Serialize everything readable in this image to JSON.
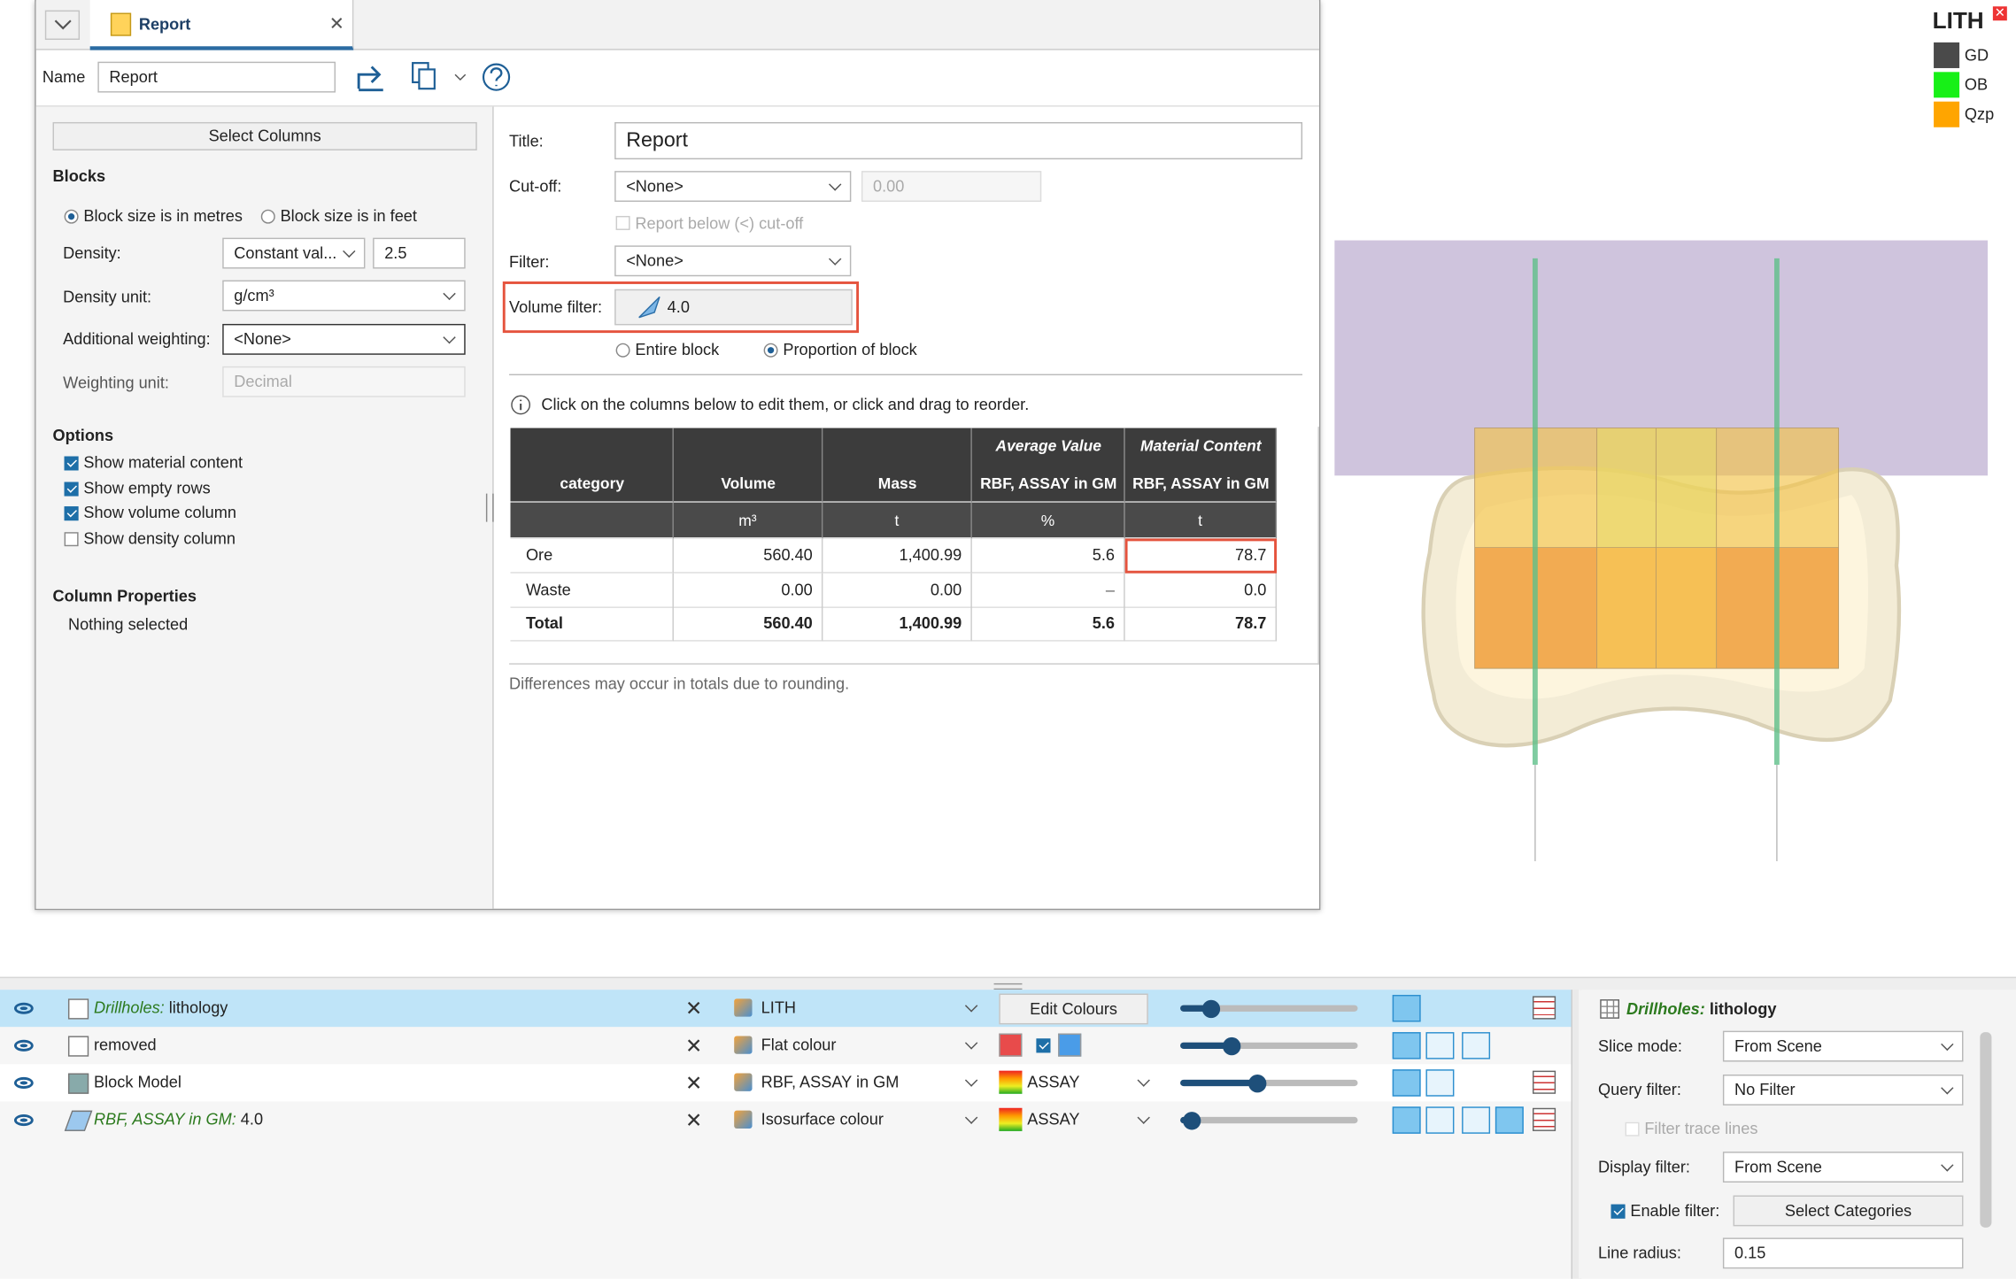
{
  "tab": {
    "title": "Report"
  },
  "toolbar": {
    "name_label": "Name",
    "name_value": "Report"
  },
  "left_panel": {
    "select_columns": "Select Columns",
    "blocks": {
      "heading": "Blocks",
      "size_options": [
        {
          "label": "Block size is in metres",
          "selected": true
        },
        {
          "label": "Block size is in feet",
          "selected": false
        }
      ],
      "density_label": "Density:",
      "density_mode": "Constant val...",
      "density_value": "2.5",
      "density_unit_label": "Density unit:",
      "density_unit": "g/cm³",
      "weighting_label": "Additional weighting:",
      "weighting": "<None>",
      "weighting_unit_label": "Weighting unit:",
      "weighting_unit": "Decimal"
    },
    "options": {
      "heading": "Options",
      "items": [
        {
          "label": "Show material content",
          "checked": true
        },
        {
          "label": "Show empty rows",
          "checked": true
        },
        {
          "label": "Show volume column",
          "checked": true
        },
        {
          "label": "Show density column",
          "checked": false
        }
      ]
    },
    "column_properties": {
      "heading": "Column Properties",
      "text": "Nothing selected"
    }
  },
  "report": {
    "title_label": "Title:",
    "title": "Report",
    "cutoff_label": "Cut-off:",
    "cutoff": "<None>",
    "cutoff_value": "0.00",
    "report_below": "Report below (<) cut-off",
    "filter_label": "Filter:",
    "filter": "<None>",
    "volume_filter_label": "Volume filter:",
    "volume_filter": "4.0",
    "volume_modes": [
      {
        "label": "Entire block",
        "selected": false
      },
      {
        "label": "Proportion of block",
        "selected": true
      }
    ],
    "info": "Click on the columns below to edit them, or click and drag to reorder.",
    "table": {
      "columns": [
        {
          "label": "category"
        },
        {
          "label": "Volume",
          "unit": "m³"
        },
        {
          "label": "Mass",
          "unit": "t"
        },
        {
          "group": "Average Value",
          "label": "RBF, ASSAY in GM",
          "unit": "%"
        },
        {
          "group": "Material Content",
          "label": "RBF, ASSAY in GM",
          "unit": "t"
        }
      ],
      "rows": [
        [
          "Ore",
          "560.40",
          "1,400.99",
          "5.6",
          "78.7"
        ],
        [
          "Waste",
          "0.00",
          "0.00",
          "–",
          "0.0"
        ],
        [
          "Total",
          "560.40",
          "1,400.99",
          "5.6",
          "78.7"
        ]
      ]
    },
    "footnote": "Differences may occur in totals due to rounding."
  },
  "legend": {
    "title": "LITH",
    "items": [
      {
        "label": "GD",
        "color": "#4a4a4a"
      },
      {
        "label": "OB",
        "color": "#17f017"
      },
      {
        "label": "Qzp",
        "color": "#ffa500"
      }
    ]
  },
  "layers": [
    {
      "prefix": "Drillholes:",
      "name": "lithology",
      "colouring": "LITH",
      "action": "Edit Colours",
      "selected": true
    },
    {
      "name": "removed",
      "colouring": "Flat colour",
      "selected": false
    },
    {
      "name": "Block Model",
      "colouring": "RBF, ASSAY in GM",
      "colour_map": "ASSAY",
      "selected": false
    },
    {
      "prefix": "RBF, ASSAY in GM:",
      "name": "4.0",
      "colouring": "Isosurface colour",
      "colour_map": "ASSAY",
      "selected": false
    }
  ],
  "properties": {
    "prefix": "Drillholes:",
    "name": "lithology",
    "slice_mode_label": "Slice mode:",
    "slice_mode": "From Scene",
    "query_filter_label": "Query filter:",
    "query_filter": "No Filter",
    "filter_trace_lines": "Filter trace lines",
    "display_filter_label": "Display filter:",
    "display_filter": "From Scene",
    "enable_filter": {
      "label": "Enable filter:",
      "checked": true
    },
    "select_categories": "Select Categories",
    "line_radius_label": "Line radius:",
    "line_radius": "0.15"
  }
}
